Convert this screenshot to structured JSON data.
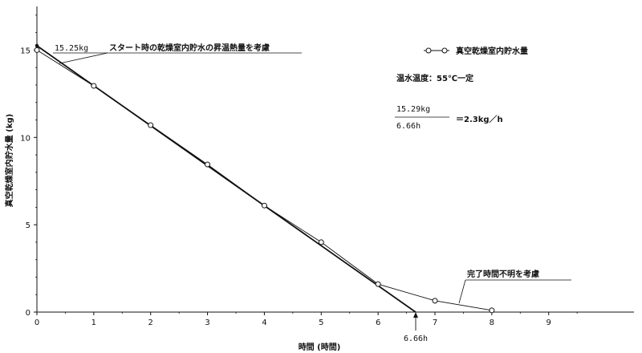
{
  "chart_data": {
    "type": "line",
    "xlabel": "時間 (時間)",
    "ylabel": "真空乾燥室内貯水量 (kg)",
    "xlim": [
      0,
      10.5
    ],
    "ylim": [
      0,
      17.5
    ],
    "x_ticks": [
      "0",
      "1",
      "2",
      "3",
      "4",
      "5",
      "6",
      "7",
      "8",
      "9"
    ],
    "y_ticks": [
      "0",
      "5",
      "10",
      "15"
    ],
    "series": [
      {
        "name": "真空乾燥室内貯水量",
        "marker": "circle",
        "x": [
          0,
          1,
          2,
          3,
          4,
          5,
          6,
          7,
          8
        ],
        "y": [
          15.0,
          12.95,
          10.7,
          8.45,
          6.1,
          4.0,
          1.6,
          0.65,
          0.1
        ]
      }
    ],
    "fit_line": {
      "x": [
        0,
        6.66
      ],
      "y": [
        15.25,
        0
      ]
    },
    "legend_position": "top-right",
    "annotations": {
      "start_value": "15.25kg",
      "start_note": "スタート時の乾燥室内貯水の昇温熱量を考慮",
      "water_temp": "温水温度：55℃一定",
      "rate_numerator": "15.29kg",
      "rate_denominator": "6.66h",
      "rate_result": "＝2.3kg／h",
      "end_note": "完了時間不明を考慮",
      "end_time": "6.66h"
    }
  }
}
